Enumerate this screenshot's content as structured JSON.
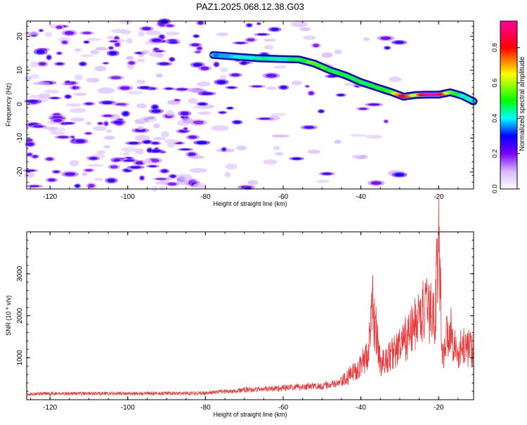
{
  "page": {
    "title": "PAZ1.2025.068.12.38.G03"
  },
  "colors": {
    "trace": "#e8383a",
    "axis": "#000000",
    "track_outline": "#1f00b8",
    "background": "#ffffff"
  },
  "colormap": {
    "label": "Normalized spectral amplitude",
    "ticks": [
      "0.0",
      "0.2",
      "0.4",
      "0.6",
      "0.8"
    ],
    "tick_values": [
      0.0,
      0.2,
      0.4,
      0.6,
      0.8
    ],
    "range": [
      0,
      0.95
    ],
    "stops": [
      {
        "v": 0.0,
        "c": "#ffffff"
      },
      {
        "v": 0.1,
        "c": "#d8b8ff"
      },
      {
        "v": 0.2,
        "c": "#7a00ff"
      },
      {
        "v": 0.3,
        "c": "#0000ff"
      },
      {
        "v": 0.4,
        "c": "#00ffff"
      },
      {
        "v": 0.5,
        "c": "#00ff00"
      },
      {
        "v": 0.65,
        "c": "#ffff00"
      },
      {
        "v": 0.8,
        "c": "#ff0000"
      },
      {
        "v": 0.95,
        "c": "#ff00a0"
      }
    ]
  },
  "chart_data": [
    {
      "type": "heatmap",
      "xlabel": "Height of straight line (km)",
      "ylabel": "Frequency (Hz)",
      "xlim": [
        -126,
        -11
      ],
      "ylim": [
        -25,
        24.5
      ],
      "xticks": [
        -120,
        -100,
        -80,
        -60,
        -40,
        -20
      ],
      "yticks": [
        -20,
        -10,
        0,
        10,
        20
      ],
      "xticklabels": [
        "-120",
        "-100",
        "-80",
        "-60",
        "-40",
        "-20"
      ],
      "yticklabels": [
        "-20",
        "-10",
        "0",
        "10",
        "20"
      ],
      "signal_track": [
        {
          "x": -78,
          "y": 14.5,
          "a": 0.35
        },
        {
          "x": -72,
          "y": 14.0,
          "a": 0.4
        },
        {
          "x": -66,
          "y": 13.5,
          "a": 0.45
        },
        {
          "x": -60,
          "y": 13.3,
          "a": 0.45
        },
        {
          "x": -56,
          "y": 13.2,
          "a": 0.5
        },
        {
          "x": -52,
          "y": 12.0,
          "a": 0.55
        },
        {
          "x": -48,
          "y": 10.0,
          "a": 0.5
        },
        {
          "x": -44,
          "y": 8.5,
          "a": 0.5
        },
        {
          "x": -40,
          "y": 6.5,
          "a": 0.48
        },
        {
          "x": -36,
          "y": 5.0,
          "a": 0.5
        },
        {
          "x": -32,
          "y": 3.5,
          "a": 0.55
        },
        {
          "x": -29,
          "y": 2.2,
          "a": 0.85
        },
        {
          "x": -26,
          "y": 2.7,
          "a": 0.6
        },
        {
          "x": -23,
          "y": 2.8,
          "a": 0.95
        },
        {
          "x": -20,
          "y": 2.8,
          "a": 0.95
        },
        {
          "x": -17,
          "y": 3.5,
          "a": 0.55
        },
        {
          "x": -14,
          "y": 2.5,
          "a": 0.45
        },
        {
          "x": -11,
          "y": 0.8,
          "a": 0.4
        }
      ],
      "noise": {
        "x_range": [
          -126,
          -40
        ],
        "y_range": [
          -25,
          24.5
        ],
        "amplitude_range": [
          0.1,
          0.3
        ]
      }
    },
    {
      "type": "line",
      "xlabel": "Height of straight line (km)",
      "ylabel": "SNR (10 * v/v)",
      "xlim": [
        -126,
        -11
      ],
      "ylim": [
        0,
        4000
      ],
      "xticks": [
        -120,
        -100,
        -80,
        -60,
        -40,
        -20
      ],
      "yticks": [
        1000,
        2000,
        3000
      ],
      "xticklabels": [
        "-120",
        "-100",
        "-80",
        "-60",
        "-40",
        "-20"
      ],
      "yticklabels": [
        "1000",
        "2000",
        "3000"
      ],
      "series": [
        {
          "envelope": [
            [
              -126,
              140
            ],
            [
              -110,
              150
            ],
            [
              -90,
              150
            ],
            [
              -80,
              160
            ],
            [
              -70,
              230
            ],
            [
              -60,
              280
            ],
            [
              -55,
              310
            ],
            [
              -50,
              330
            ],
            [
              -46,
              380
            ],
            [
              -44,
              480
            ],
            [
              -42,
              650
            ],
            [
              -40,
              850
            ],
            [
              -39,
              950
            ],
            [
              -38,
              1200
            ],
            [
              -37,
              2200
            ],
            [
              -36,
              1600
            ],
            [
              -35,
              850
            ],
            [
              -34,
              900
            ],
            [
              -32,
              1100
            ],
            [
              -30,
              1250
            ],
            [
              -28,
              1500
            ],
            [
              -26,
              1800
            ],
            [
              -24,
              2100
            ],
            [
              -22,
              2100
            ],
            [
              -21,
              2000
            ],
            [
              -20,
              3800
            ],
            [
              -19,
              1000
            ],
            [
              -18,
              1500
            ],
            [
              -17,
              1700
            ],
            [
              -16,
              1350
            ],
            [
              -15,
              1000
            ],
            [
              -14,
              1300
            ],
            [
              -13,
              1250
            ],
            [
              -11,
              1200
            ]
          ]
        }
      ]
    }
  ]
}
